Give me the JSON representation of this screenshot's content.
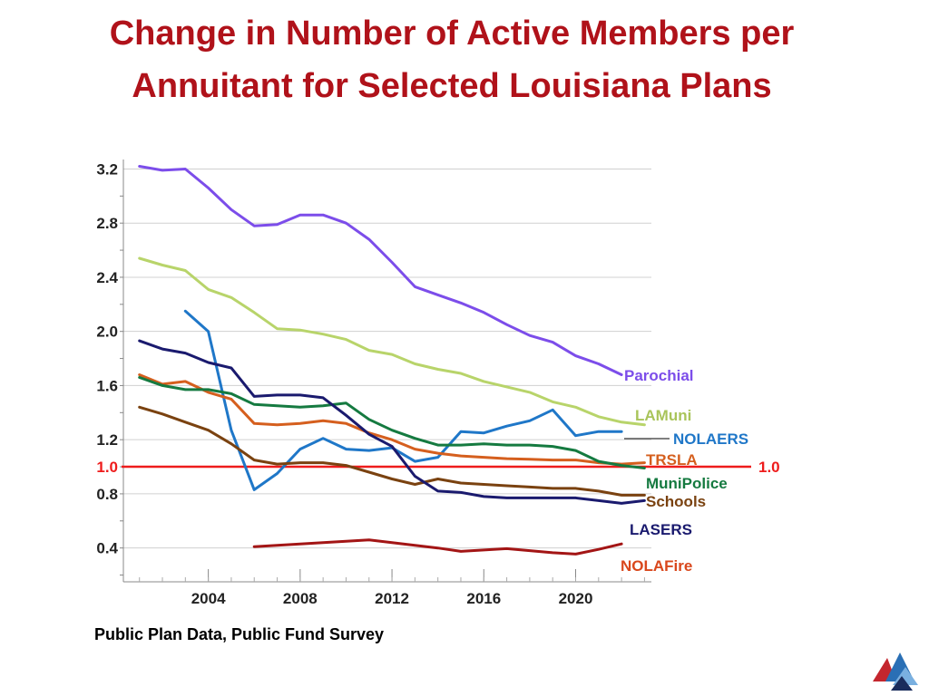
{
  "title": {
    "line1": "Change in Number of Active Members per",
    "line2": "Annuitant for Selected Louisiana Plans"
  },
  "source": "Public Plan Data, Public Fund Survey",
  "chart_data": {
    "type": "line",
    "title": "Change in Number of Active Members per Annuitant for Selected Louisiana Plans",
    "xlabel": "",
    "ylabel": "",
    "xlim": [
      2000.3,
      2023.3
    ],
    "ylim": [
      0.15,
      3.27
    ],
    "x_ticks": [
      2004,
      2008,
      2012,
      2016,
      2020
    ],
    "x_tick_labels": [
      "2004",
      "2008",
      "2012",
      "2016",
      "2020"
    ],
    "y_ticks": [
      0.4,
      0.8,
      1.2,
      1.6,
      2.0,
      2.4,
      2.8,
      3.2
    ],
    "y_tick_labels": [
      "0.4",
      "0.8",
      "1.2",
      "1.6",
      "2.0",
      "2.4",
      "2.8",
      "3.2"
    ],
    "grid": "horizontal",
    "reference_line": {
      "value": 1.0,
      "label": "1.0",
      "color": "#ee1c1c"
    },
    "series": [
      {
        "name": "Parochial",
        "color": "#7c4dea",
        "x": [
          2001,
          2002,
          2003,
          2004,
          2005,
          2006,
          2007,
          2008,
          2009,
          2010,
          2011,
          2012,
          2013,
          2014,
          2015,
          2016,
          2017,
          2018,
          2019,
          2020,
          2021,
          2022
        ],
        "y": [
          3.22,
          3.19,
          3.2,
          3.06,
          2.9,
          2.78,
          2.79,
          2.86,
          2.86,
          2.8,
          2.68,
          2.51,
          2.33,
          2.27,
          2.21,
          2.14,
          2.05,
          1.97,
          1.92,
          1.82,
          1.76,
          1.68
        ]
      },
      {
        "name": "LAMuni",
        "color": "#b8d46a",
        "x": [
          2001,
          2002,
          2003,
          2004,
          2005,
          2006,
          2007,
          2008,
          2009,
          2010,
          2011,
          2012,
          2013,
          2014,
          2015,
          2016,
          2017,
          2018,
          2019,
          2020,
          2021,
          2022,
          2023
        ],
        "y": [
          2.54,
          2.49,
          2.45,
          2.31,
          2.25,
          2.14,
          2.02,
          2.01,
          1.98,
          1.94,
          1.86,
          1.83,
          1.76,
          1.72,
          1.69,
          1.63,
          1.59,
          1.55,
          1.48,
          1.44,
          1.37,
          1.33,
          1.31
        ]
      },
      {
        "name": "NOLAERS",
        "color": "#1f77c8",
        "x": [
          2003,
          2004,
          2005,
          2006,
          2007,
          2008,
          2009,
          2010,
          2011,
          2012,
          2013,
          2014,
          2015,
          2016,
          2017,
          2018,
          2019,
          2020,
          2021,
          2022
        ],
        "y": [
          2.15,
          2.0,
          1.27,
          0.83,
          0.95,
          1.13,
          1.21,
          1.13,
          1.12,
          1.14,
          1.04,
          1.07,
          1.26,
          1.25,
          1.3,
          1.34,
          1.42,
          1.23,
          1.26,
          1.26
        ]
      },
      {
        "name": "TRSLA",
        "color": "#d55f1e",
        "x": [
          2001,
          2002,
          2003,
          2004,
          2005,
          2006,
          2007,
          2008,
          2009,
          2010,
          2011,
          2012,
          2013,
          2014,
          2015,
          2016,
          2017,
          2018,
          2019,
          2020,
          2021,
          2022,
          2023
        ],
        "y": [
          1.68,
          1.61,
          1.63,
          1.55,
          1.5,
          1.32,
          1.31,
          1.32,
          1.34,
          1.32,
          1.25,
          1.2,
          1.13,
          1.1,
          1.08,
          1.07,
          1.06,
          1.055,
          1.05,
          1.05,
          1.03,
          1.02,
          1.03
        ]
      },
      {
        "name": "MuniPolice",
        "color": "#157a40",
        "x": [
          2001,
          2002,
          2003,
          2004,
          2005,
          2006,
          2007,
          2008,
          2009,
          2010,
          2011,
          2012,
          2013,
          2014,
          2015,
          2016,
          2017,
          2018,
          2019,
          2020,
          2021,
          2022,
          2023
        ],
        "y": [
          1.66,
          1.6,
          1.57,
          1.57,
          1.54,
          1.46,
          1.45,
          1.44,
          1.45,
          1.47,
          1.35,
          1.27,
          1.21,
          1.16,
          1.16,
          1.17,
          1.16,
          1.16,
          1.15,
          1.12,
          1.04,
          1.01,
          0.99
        ]
      },
      {
        "name": "Schools",
        "color": "#7a4210",
        "x": [
          2001,
          2002,
          2003,
          2004,
          2005,
          2006,
          2007,
          2008,
          2009,
          2010,
          2011,
          2012,
          2013,
          2014,
          2015,
          2016,
          2017,
          2018,
          2019,
          2020,
          2021,
          2022,
          2023
        ],
        "y": [
          1.44,
          1.39,
          1.33,
          1.27,
          1.17,
          1.05,
          1.02,
          1.03,
          1.03,
          1.01,
          0.96,
          0.91,
          0.87,
          0.91,
          0.88,
          0.87,
          0.86,
          0.85,
          0.84,
          0.84,
          0.82,
          0.79,
          0.79
        ]
      },
      {
        "name": "LASERS",
        "color": "#1a1a6e",
        "x": [
          2001,
          2002,
          2003,
          2004,
          2005,
          2006,
          2007,
          2008,
          2009,
          2010,
          2011,
          2012,
          2013,
          2014,
          2015,
          2016,
          2017,
          2018,
          2019,
          2020,
          2021,
          2022,
          2023
        ],
        "y": [
          1.93,
          1.87,
          1.84,
          1.77,
          1.73,
          1.52,
          1.53,
          1.53,
          1.51,
          1.38,
          1.24,
          1.15,
          0.93,
          0.82,
          0.81,
          0.78,
          0.77,
          0.77,
          0.77,
          0.77,
          0.75,
          0.73,
          0.75
        ]
      },
      {
        "name": "NOLAFire",
        "color": "#a31515",
        "x": [
          2006,
          2007,
          2008,
          2009,
          2010,
          2011,
          2012,
          2013,
          2014,
          2015,
          2016,
          2017,
          2018,
          2019,
          2020,
          2021,
          2022
        ],
        "y": [
          0.41,
          0.42,
          0.43,
          0.44,
          0.45,
          0.46,
          0.44,
          0.42,
          0.4,
          0.375,
          0.385,
          0.395,
          0.38,
          0.365,
          0.355,
          0.39,
          0.43
        ]
      }
    ],
    "legend": "inline-right"
  },
  "series_labels": [
    {
      "name": "Parochial",
      "color": "#7c4dea"
    },
    {
      "name": "LAMuni",
      "color": "#a9c45a"
    },
    {
      "name": "NOLAERS",
      "color": "#1f77c8"
    },
    {
      "name": "TRSLA",
      "color": "#d55f1e"
    },
    {
      "name": "MuniPolice",
      "color": "#157a40"
    },
    {
      "name": "Schools",
      "color": "#7a4210"
    },
    {
      "name": "LASERS",
      "color": "#1a1a6e"
    },
    {
      "name": "NOLAFire",
      "color": "#d9471c"
    }
  ],
  "colors": {
    "title": "#b0121a",
    "grid": "#d0d0d0",
    "axis": "#888888"
  },
  "logo": {
    "icon": "triangle-logo-icon"
  }
}
